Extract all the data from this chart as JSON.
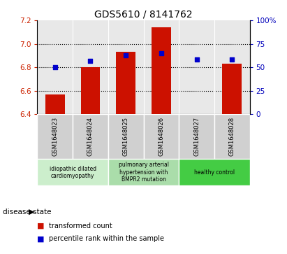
{
  "title": "GDS5610 / 8141762",
  "samples": [
    "GSM1648023",
    "GSM1648024",
    "GSM1648025",
    "GSM1648026",
    "GSM1648027",
    "GSM1648028"
  ],
  "transformed_count": [
    6.57,
    6.8,
    6.93,
    7.14,
    6.4,
    6.83
  ],
  "percentile_rank": [
    50,
    57,
    63,
    65,
    58,
    58
  ],
  "ylim_left": [
    6.4,
    7.2
  ],
  "ylim_right": [
    0,
    100
  ],
  "yticks_left": [
    6.4,
    6.6,
    6.8,
    7.0,
    7.2
  ],
  "yticks_right": [
    0,
    25,
    50,
    75,
    100
  ],
  "bar_color": "#cc1100",
  "dot_color": "#0000cc",
  "title_fontsize": 10,
  "sample_box_color": "#cccccc",
  "disease_groups": [
    {
      "label": "idiopathic dilated\ncardiomyopathy",
      "indices": [
        0,
        1
      ],
      "color": "#cceecc"
    },
    {
      "label": "pulmonary arterial\nhypertension with\nBMPR2 mutation",
      "indices": [
        2,
        3
      ],
      "color": "#aaddaa"
    },
    {
      "label": "healthy control",
      "indices": [
        4,
        5
      ],
      "color": "#44cc44"
    }
  ],
  "disease_state_label": "disease state",
  "legend_bar_label": "transformed count",
  "legend_dot_label": "percentile rank within the sample",
  "bar_width": 0.55
}
